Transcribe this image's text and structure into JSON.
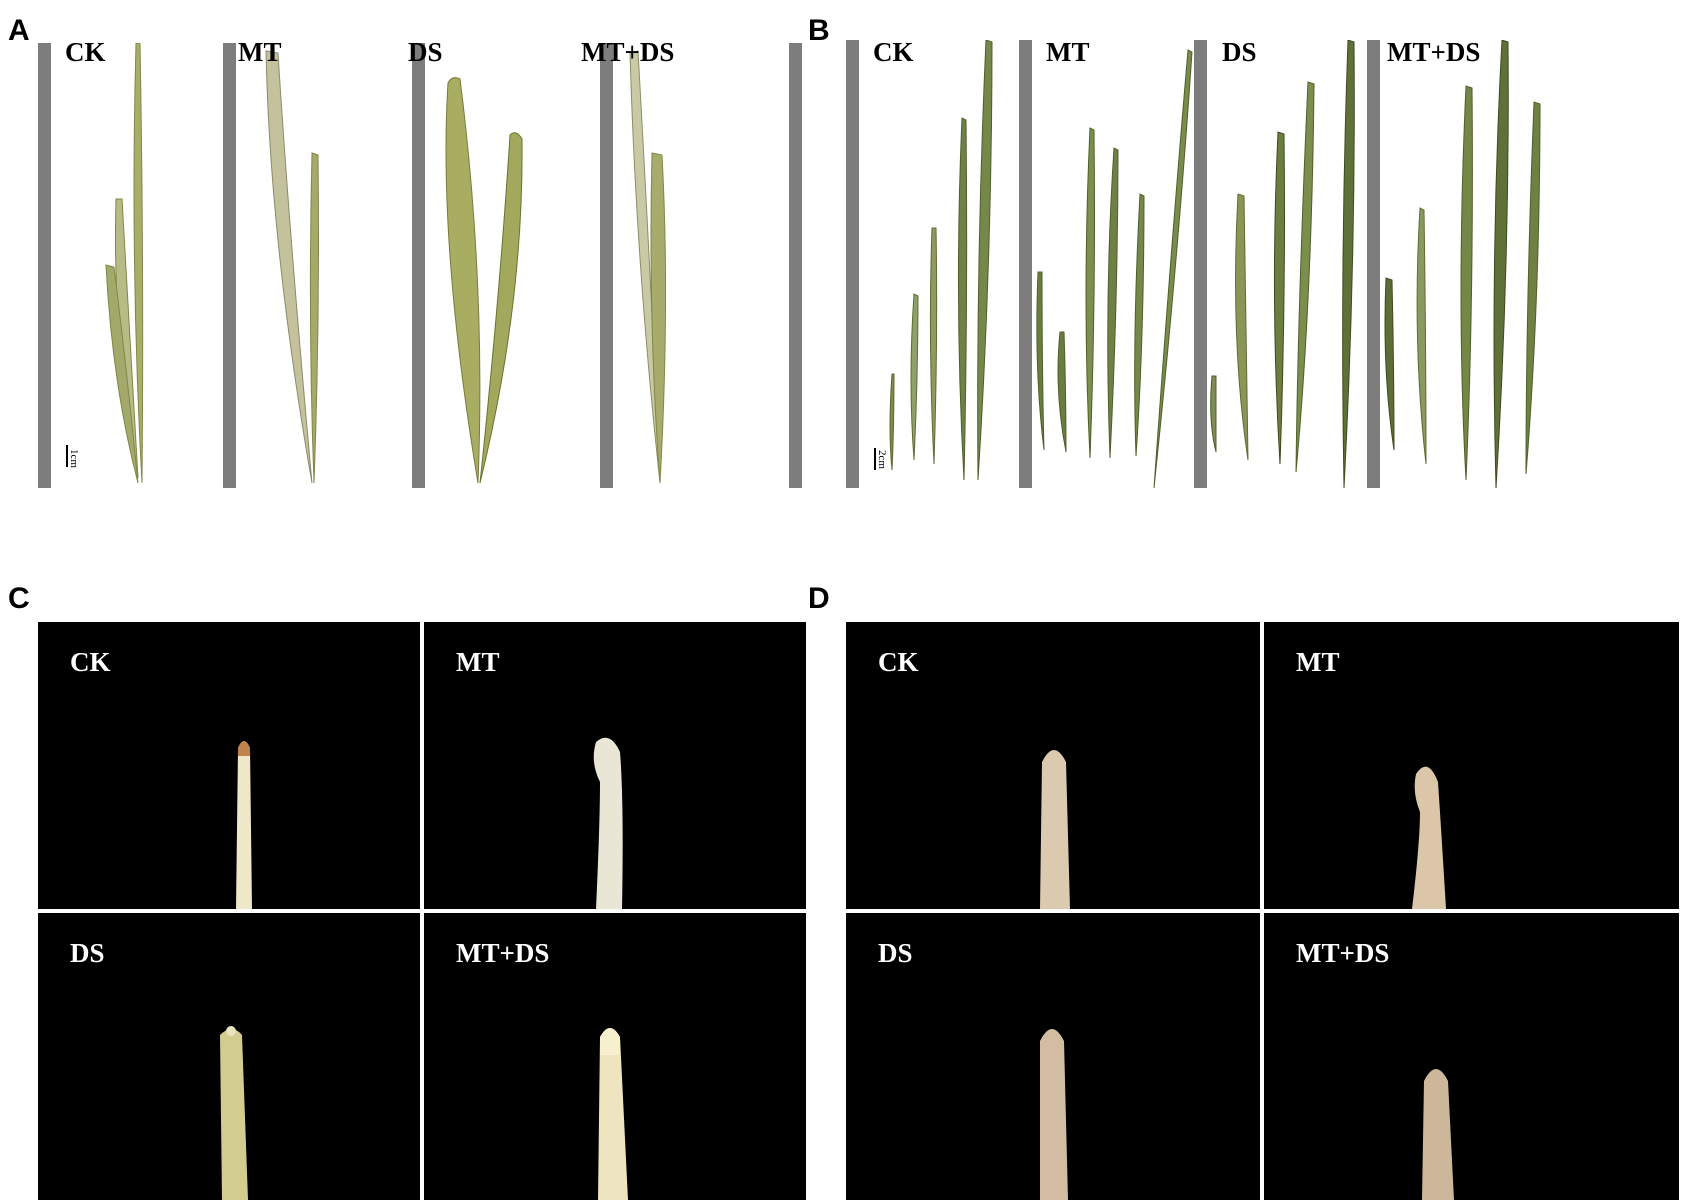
{
  "panels": {
    "a": {
      "letter": "A",
      "labels": [
        "CK",
        "MT",
        "DS",
        "MT+DS"
      ],
      "scale": "1cm"
    },
    "b": {
      "letter": "B",
      "labels": [
        "CK",
        "MT",
        "DS",
        "MT+DS"
      ],
      "scale": "2cm"
    },
    "c": {
      "letter": "C",
      "labels": [
        "CK",
        "MT",
        "DS",
        "MT+DS"
      ]
    },
    "d": {
      "letter": "D",
      "labels": [
        "CK",
        "MT",
        "DS",
        "MT+DS"
      ]
    }
  },
  "colors": {
    "bar": "#7d7d7d",
    "leaf": "#a8ad6a",
    "leaf_dark": "#5f6b33",
    "root_c": "#efe8c8",
    "root_d": "#dccab0",
    "photo_bg": "#000000"
  }
}
